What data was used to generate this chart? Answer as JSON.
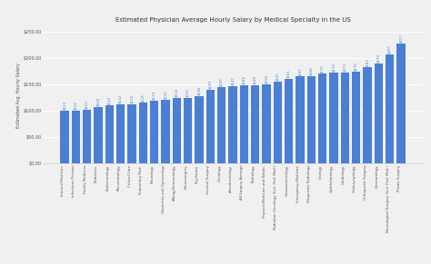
{
  "title": "Estimated Physician Average Hourly Salary by Medical Specialty in the US",
  "ylabel": "Estimated Avg. Hourly Salary",
  "bar_color": "#4a7fd4",
  "background_color": "#f0f0f0",
  "categories_values": [
    [
      "Internal Medicine",
      100
    ],
    [
      "Infectious Disease",
      101
    ],
    [
      "Family Medicine",
      102
    ],
    [
      "Pediatrics",
      108
    ],
    [
      "Endocrinology",
      110
    ],
    [
      "Rheumatology",
      112
    ],
    [
      "Critical Care",
      113
    ],
    [
      "Pulmonary Med.",
      115
    ],
    [
      "Neurology",
      119
    ],
    [
      "Obstetrics and Gynecology",
      121
    ],
    [
      "Allergy/Immunology",
      124
    ],
    [
      "Neurosurgery",
      125
    ],
    [
      "Psychiatry",
      128
    ],
    [
      "General Surgery",
      140
    ],
    [
      "Oncology",
      145
    ],
    [
      "Anesthesiology",
      147
    ],
    [
      "All Surgery Average",
      148
    ],
    [
      "Pathology",
      149
    ],
    [
      "Physical Medicine and Rehab.",
      150
    ],
    [
      "Radiation Oncology (Incl. Prof. Med.)",
      155
    ],
    [
      "Gastroenterology",
      161
    ],
    [
      "Emergency Medicine",
      165
    ],
    [
      "Diagnostic Radiology",
      166
    ],
    [
      "Urology",
      170
    ],
    [
      "Ophthalmology",
      172
    ],
    [
      "Cardiology",
      173
    ],
    [
      "Otolaryngology",
      175
    ],
    [
      "Orthopedic Surgery",
      182
    ],
    [
      "Dermatology",
      190
    ],
    [
      "Neurological Surgery (Incl. Prof. Med.)",
      207
    ],
    [
      "Plastic Surgery",
      227
    ]
  ],
  "ylim": [
    0,
    260
  ],
  "yticks": [
    0,
    50,
    100,
    150,
    200,
    250
  ],
  "ytick_labels": [
    "$0.00",
    "$50.00",
    "$100.00",
    "$150.00",
    "$200.00",
    "$250.00"
  ]
}
